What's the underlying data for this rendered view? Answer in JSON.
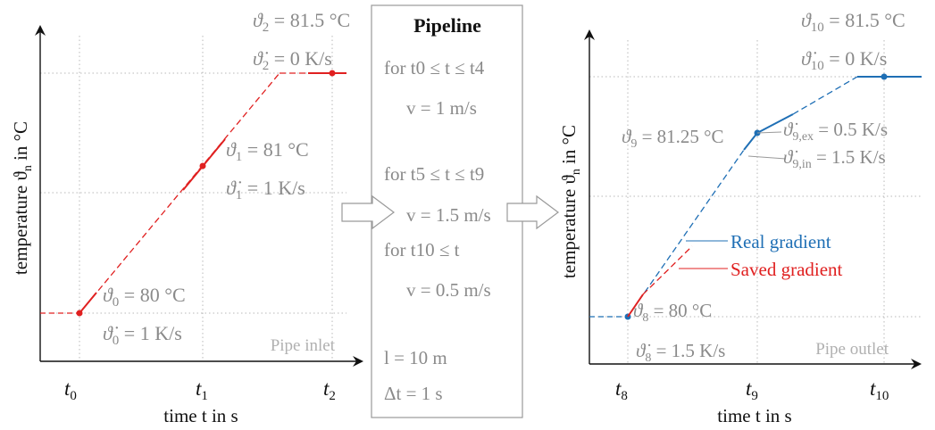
{
  "left_plot": {
    "ylabel": "temperature ϑ",
    "ylabel_sub": "n",
    "ylabel_suffix": " in °C",
    "xlabel": "time t in s",
    "ticks": [
      {
        "base": "t",
        "sub": "0"
      },
      {
        "base": "t",
        "sub": "1"
      },
      {
        "base": "t",
        "sub": "2"
      }
    ],
    "watermark": "Pipe inlet",
    "annotations": [
      {
        "sym": "ϑ",
        "sub": "2",
        "text": " = 81.5 °C"
      },
      {
        "sym": "ϑ̇",
        "sub": "2",
        "text": " = 0 K/s"
      },
      {
        "sym": "ϑ",
        "sub": "1",
        "text": " = 81 °C"
      },
      {
        "sym": "ϑ̇",
        "sub": "1",
        "text": " = 1 K/s"
      },
      {
        "sym": "ϑ",
        "sub": "0",
        "text": " = 80 °C"
      },
      {
        "sym": "ϑ̇",
        "sub": "0",
        "text": " = 1 K/s"
      }
    ]
  },
  "pipeline": {
    "title": "Pipeline",
    "lines": [
      "for t0 ≤ t ≤ t4",
      "v = 1 m/s",
      "for t5 ≤ t ≤ t9",
      "v = 1.5 m/s",
      "for t10 ≤ t",
      "v = 0.5  m/s",
      "l = 10 m",
      "Δt = 1 s"
    ]
  },
  "right_plot": {
    "ylabel": "temperature ϑ",
    "ylabel_sub": "n",
    "ylabel_suffix": " in °C",
    "xlabel": "time t in s",
    "ticks": [
      {
        "base": "t",
        "sub": "8"
      },
      {
        "base": "t",
        "sub": "9"
      },
      {
        "base": "t",
        "sub": "10"
      }
    ],
    "watermark": "Pipe outlet",
    "legend": [
      "Real gradient",
      "Saved gradient"
    ],
    "annotations": [
      {
        "sym": "ϑ",
        "sub": "10",
        "text": " = 81.5 °C"
      },
      {
        "sym": "ϑ̇",
        "sub": "10",
        "text": " = 0 K/s"
      },
      {
        "sym": "ϑ",
        "sub": "9",
        "text": " = 81.25 °C"
      },
      {
        "sym": "ϑ̇",
        "sub": "9,ex",
        "text": " = 0.5 K/s"
      },
      {
        "sym": "ϑ̇",
        "sub": "9,in",
        "text": " = 1.5 K/s"
      },
      {
        "sym": "ϑ",
        "sub": "8",
        "text": " = 80 °C"
      },
      {
        "sym": "ϑ̇",
        "sub": "8",
        "text": " = 1.5 K/s"
      }
    ]
  },
  "colors": {
    "red": "#e02020",
    "blue": "#1f6fb5",
    "gray_text": "#8a8a8a"
  }
}
